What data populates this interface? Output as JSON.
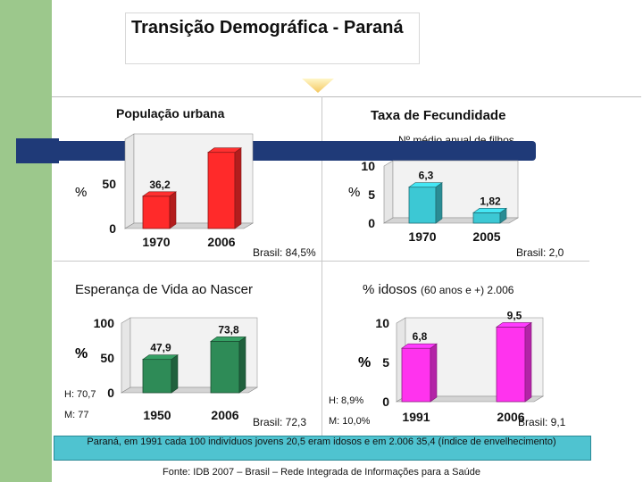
{
  "title": "Transição Demográfica - Paraná",
  "unit_percent": "%",
  "panels": {
    "urban": {
      "title": "População urbana",
      "faded_labels": [
        "",
        ""
      ],
      "brazil": "Brasil: 84,5%"
    },
    "fertility": {
      "title": "Taxa de Fecundidade",
      "subtitle": "Nº médio anual de filhos",
      "brazil": "Brasil: 2,0"
    },
    "life": {
      "title": "Esperança de Vida ao Nascer",
      "h": "H: 70,7",
      "m": "M: 77",
      "brazil": "Brasil: 72,3"
    },
    "elderly": {
      "title_main": "% idosos",
      "title_small": "(60 anos e +) 2.006",
      "h": "H: 8,9%",
      "m": "M: 10,0%",
      "brazil": "Brasil: 9,1"
    }
  },
  "footnote": "Paraná, em 1991 cada 100 indivíduos jovens 20,5 eram idosos e em 2.006 35,4 (índice de envelhecimento)",
  "source": "Fonte: IDB 2007 – Brasil – Rede Integrada de Informações para a Saúde",
  "chart_data": [
    {
      "type": "bar",
      "title": "População urbana",
      "ylabel": "%",
      "categories": [
        "1970",
        "2006"
      ],
      "values": [
        36.2,
        85.3
      ],
      "value_labels": [
        "36,2",
        ""
      ],
      "yticks": [
        "0",
        "50"
      ],
      "ylim": [
        0,
        100
      ],
      "colors": [
        "#ff2a2a",
        "#ff2a2a"
      ]
    },
    {
      "type": "bar",
      "title": "Taxa de Fecundidade",
      "ylabel": "%",
      "categories": [
        "1970",
        "2005"
      ],
      "values": [
        6.3,
        1.82
      ],
      "value_labels": [
        "6,3",
        "1,82"
      ],
      "yticks": [
        "0",
        "5",
        "10"
      ],
      "ylim": [
        0,
        10
      ],
      "colors": [
        "#3cc8d4",
        "#3cc8d4"
      ]
    },
    {
      "type": "bar",
      "title": "Esperança de Vida ao Nascer",
      "ylabel": "%",
      "categories": [
        "1950",
        "2006"
      ],
      "values": [
        47.9,
        73.8
      ],
      "value_labels": [
        "47,9",
        "73,8"
      ],
      "yticks": [
        "0",
        "50",
        "100"
      ],
      "ylim": [
        0,
        100
      ],
      "colors": [
        "#2e8b57",
        "#2e8b57"
      ]
    },
    {
      "type": "bar",
      "title": "% idosos (60 anos e +) 2.006",
      "ylabel": "%",
      "categories": [
        "1991",
        "2006"
      ],
      "values": [
        6.8,
        9.5
      ],
      "value_labels": [
        "6,8",
        "9,5"
      ],
      "yticks": [
        "0",
        "5",
        "10"
      ],
      "ylim": [
        0,
        10
      ],
      "colors": [
        "#ff33ee",
        "#ff33ee"
      ]
    }
  ]
}
